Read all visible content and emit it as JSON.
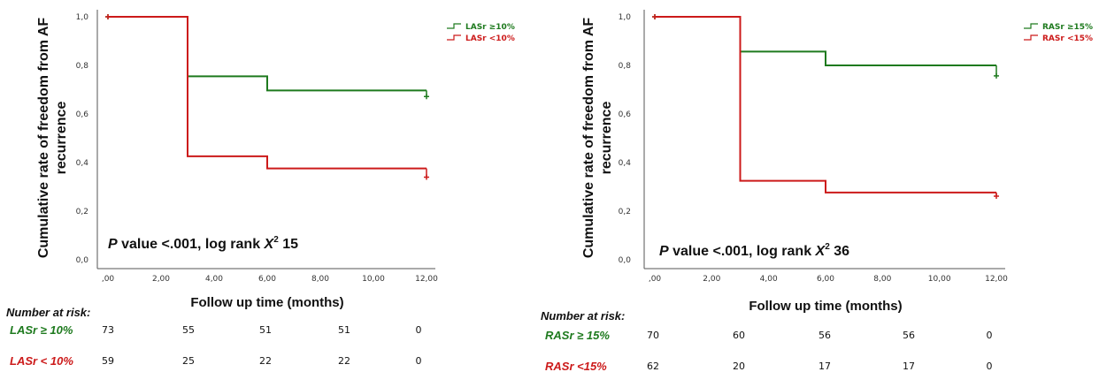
{
  "chart_data": [
    {
      "type": "line",
      "subtype": "kaplan-meier",
      "ylabel": "Cumulative rate of freedom from AF recurrence",
      "ylabel_lines": [
        "Cumulative rate of freedom from AF",
        "recurrence"
      ],
      "xlabel": "Follow up time (months)",
      "x_ticks": [
        ",00",
        "2,00",
        "4,00",
        "6,00",
        "8,00",
        "10,00",
        "12,00"
      ],
      "y_ticks": [
        "0,0",
        "0,2",
        "0,4",
        "0,6",
        "0,8",
        "1,0"
      ],
      "xlim": [
        0,
        12
      ],
      "ylim": [
        0,
        1
      ],
      "annotation": {
        "p_prefix": "P",
        "p_text": " value <.001, log rank ",
        "chi_symbol": "X",
        "chi_sup": "2",
        "chi_value": " 15"
      },
      "series": [
        {
          "name": "LASr ≥10%",
          "color": "#1e7a1e",
          "steps": [
            [
              0,
              1.0
            ],
            [
              3,
              0.755
            ],
            [
              6,
              0.697
            ],
            [
              12,
              0.697
            ]
          ],
          "censor": [
            [
              0,
              1.0
            ],
            [
              12,
              0.672
            ]
          ]
        },
        {
          "name": "LASr <10%",
          "color": "#cc1a1a",
          "steps": [
            [
              0,
              1.0
            ],
            [
              3,
              0.426
            ],
            [
              6,
              0.376
            ],
            [
              12,
              0.376
            ]
          ],
          "censor": [
            [
              0,
              1.0
            ],
            [
              12,
              0.34
            ]
          ]
        }
      ],
      "risk_table": {
        "header": "Number at risk:",
        "rows": [
          {
            "label": "LASr ≥ 10%",
            "color": "#1e7a1e",
            "values": [
              "73",
              "55",
              "51",
              "51",
              "0"
            ]
          },
          {
            "label": "LASr < 10%",
            "color": "#cc1a1a",
            "values": [
              "59",
              "25",
              "22",
              "22",
              "0"
            ]
          }
        ]
      }
    },
    {
      "type": "line",
      "subtype": "kaplan-meier",
      "ylabel": "Cumulative rate of freedom from AF recurrence",
      "ylabel_lines": [
        "Cumulative rate of freedom from AF",
        "recurrence"
      ],
      "xlabel": "Follow up time (months)",
      "x_ticks": [
        ",00",
        "2,00",
        "4,00",
        "6,00",
        "8,00",
        "10,00",
        "12,00"
      ],
      "y_ticks": [
        "0,0",
        "0,2",
        "0,4",
        "0,6",
        "0,8",
        "1,0"
      ],
      "xlim": [
        0,
        12
      ],
      "ylim": [
        0,
        1
      ],
      "annotation": {
        "p_prefix": "P",
        "p_text": " value <.001, log rank ",
        "chi_symbol": "X",
        "chi_sup": "2",
        "chi_value": " 36"
      },
      "series": [
        {
          "name": "RASr ≥15%",
          "color": "#1e7a1e",
          "steps": [
            [
              0,
              1.0
            ],
            [
              3,
              0.857
            ],
            [
              6,
              0.8
            ],
            [
              12,
              0.8
            ]
          ],
          "censor": [
            [
              0,
              1.0
            ],
            [
              12,
              0.757
            ]
          ]
        },
        {
          "name": "RASr <15%",
          "color": "#cc1a1a",
          "steps": [
            [
              0,
              1.0
            ],
            [
              3,
              0.325
            ],
            [
              6,
              0.277
            ],
            [
              12,
              0.277
            ]
          ],
          "censor": [
            [
              0,
              1.0
            ],
            [
              12,
              0.262
            ]
          ]
        }
      ],
      "risk_table": {
        "header": "Number at risk:",
        "rows": [
          {
            "label": "RASr ≥ 15%",
            "color": "#1e7a1e",
            "values": [
              "70",
              "60",
              "56",
              "56",
              "0"
            ]
          },
          {
            "label": "RASr <15%",
            "color": "#cc1a1a",
            "values": [
              "62",
              "20",
              "17",
              "17",
              "0"
            ]
          }
        ]
      }
    }
  ]
}
